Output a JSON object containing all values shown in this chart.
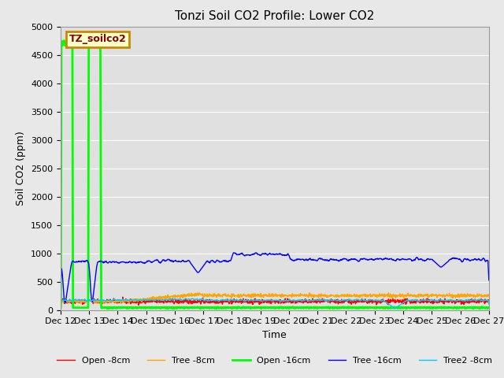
{
  "title": "Tonzi Soil CO2 Profile: Lower CO2",
  "xlabel": "Time",
  "ylabel": "Soil CO2 (ppm)",
  "ylim": [
    0,
    5000
  ],
  "xlim": [
    12,
    27
  ],
  "xtick_values": [
    12,
    13,
    14,
    15,
    16,
    17,
    18,
    19,
    20,
    21,
    22,
    23,
    24,
    25,
    26,
    27
  ],
  "xtick_labels": [
    "Dec 12",
    "Dec 13",
    "Dec 14",
    "Dec 15",
    "Dec 16",
    "Dec 17",
    "Dec 18",
    "Dec 19",
    "Dec 20",
    "Dec 21",
    "Dec 22",
    "Dec 23",
    "Dec 24",
    "Dec 25",
    "Dec 26",
    "Dec 27"
  ],
  "ytick_values": [
    0,
    500,
    1000,
    1500,
    2000,
    2500,
    3000,
    3500,
    4000,
    4500,
    5000
  ],
  "legend_label": "TZ_soilco2",
  "series_labels": [
    "Open -8cm",
    "Tree -8cm",
    "Open -16cm",
    "Tree -16cm",
    "Tree2 -8cm"
  ],
  "series_colors": [
    "#ff0000",
    "#ffa500",
    "#00ff00",
    "#0000ff",
    "#00ccff"
  ],
  "series_linewidths": [
    1.0,
    1.0,
    2.0,
    1.0,
    1.0
  ],
  "bg_color": "#e8e8e8",
  "plot_bg_color": "#e0e0e0",
  "grid_color": "#ffffff",
  "title_fontsize": 11,
  "axis_fontsize": 9,
  "tick_fontsize": 8,
  "annotation_fontsize": 9,
  "legend_fontsize": 8
}
